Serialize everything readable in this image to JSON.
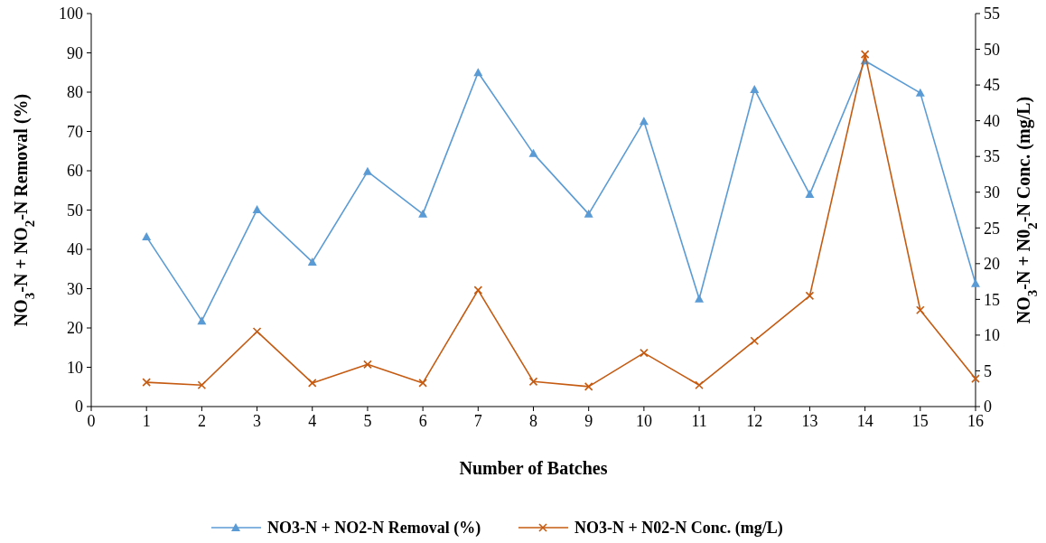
{
  "chart_data": {
    "type": "line",
    "xlabel": "Number of Batches",
    "ylabel": "NO$_{3}$-N + NO$_{2}$-N Removal (%)",
    "y2label": "NO$_{3}$-N + N0$_{2}$-N Conc. (mg/L)",
    "x": [
      1,
      2,
      3,
      4,
      5,
      6,
      7,
      8,
      9,
      10,
      11,
      12,
      13,
      14,
      15,
      16
    ],
    "xlim": [
      0,
      16
    ],
    "xticks": [
      0,
      1,
      2,
      3,
      4,
      5,
      6,
      7,
      8,
      9,
      10,
      11,
      12,
      13,
      14,
      15,
      16
    ],
    "ylim": [
      0,
      100
    ],
    "yticks": [
      0,
      10,
      20,
      30,
      40,
      50,
      60,
      70,
      80,
      90,
      100
    ],
    "y2lim": [
      0,
      55
    ],
    "y2ticks": [
      0,
      5,
      10,
      15,
      20,
      25,
      30,
      35,
      40,
      45,
      50,
      55
    ],
    "legend": "bottom",
    "grid": false,
    "series": [
      {
        "name": "NO3-N + NO2-N Removal (%)",
        "color": "#5b9bd5",
        "marker": "triangle",
        "values": [
          43.2,
          21.8,
          50.1,
          36.8,
          59.8,
          49,
          85,
          64.4,
          49,
          72.6,
          27.4,
          80.7,
          54,
          88,
          79.8,
          31.3
        ]
      },
      {
        "name": "NO3-N + N02-N Conc. (mg/L)",
        "color": "#c55a11",
        "marker": "cross",
        "axis": "y2",
        "values": [
          3.4,
          3.0,
          10.5,
          3.3,
          5.9,
          3.3,
          16.3,
          3.5,
          2.8,
          7.5,
          3.0,
          9.2,
          15.5,
          49.3,
          13.5,
          3.9
        ]
      }
    ]
  }
}
